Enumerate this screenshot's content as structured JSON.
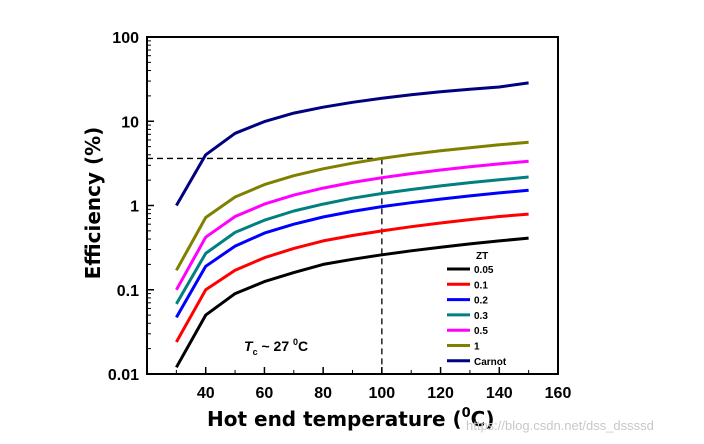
{
  "chart_data": {
    "type": "line",
    "xlabel": "Hot end temperature (",
    "xlabel_sup": "0",
    "xlabel_tail": "C)",
    "ylabel": "Efficiency (%)",
    "xlim": [
      20,
      160
    ],
    "ylim": [
      0.01,
      100
    ],
    "yscale": "log",
    "xticks": [
      "40",
      "60",
      "80",
      "100",
      "120",
      "140",
      "160"
    ],
    "yticks": [
      "0.01",
      "0.1",
      "1",
      "10",
      "100"
    ],
    "legend_title": "ZT",
    "legend_position": "bottom-right",
    "x": [
      30,
      40,
      50,
      60,
      70,
      80,
      90,
      100,
      110,
      120,
      130,
      140,
      150
    ],
    "series": [
      {
        "name": "0.05",
        "color": "#000000",
        "values": [
          0.012,
          0.05,
          0.09,
          0.125,
          0.16,
          0.2,
          0.23,
          0.26,
          0.29,
          0.32,
          0.35,
          0.38,
          0.41
        ]
      },
      {
        "name": "0.1",
        "color": "#ff0000",
        "values": [
          0.024,
          0.1,
          0.17,
          0.24,
          0.31,
          0.38,
          0.44,
          0.5,
          0.56,
          0.62,
          0.68,
          0.74,
          0.79
        ]
      },
      {
        "name": "0.2",
        "color": "#0000ff",
        "values": [
          0.047,
          0.19,
          0.33,
          0.47,
          0.6,
          0.73,
          0.85,
          0.97,
          1.08,
          1.19,
          1.3,
          1.41,
          1.52
        ]
      },
      {
        "name": "0.3",
        "color": "#008080",
        "values": [
          0.068,
          0.27,
          0.48,
          0.67,
          0.86,
          1.04,
          1.22,
          1.39,
          1.55,
          1.71,
          1.87,
          2.02,
          2.18
        ]
      },
      {
        "name": "0.5",
        "color": "#ff00ff",
        "values": [
          0.1,
          0.42,
          0.74,
          1.04,
          1.33,
          1.61,
          1.88,
          2.14,
          2.39,
          2.64,
          2.88,
          3.12,
          3.35
        ]
      },
      {
        "name": "1",
        "color": "#808000",
        "values": [
          0.17,
          0.72,
          1.26,
          1.77,
          2.26,
          2.73,
          3.18,
          3.62,
          4.05,
          4.46,
          4.86,
          5.25,
          5.63
        ]
      },
      {
        "name": "Carnot",
        "color": "#000080",
        "values": [
          1.0,
          4.0,
          7.2,
          9.9,
          12.5,
          14.7,
          16.8,
          18.8,
          20.6,
          22.4,
          24.0,
          25.5,
          28.5
        ]
      }
    ],
    "reference_lines": {
      "x": 100,
      "y": 3.62,
      "style": "dashed"
    },
    "annotation": {
      "prefix": "T",
      "sub": "c",
      "middle": " ~ 27 ",
      "sup": "0",
      "tail": "C"
    }
  },
  "watermark": "https://blog.csdn.net/dss_dssssd"
}
